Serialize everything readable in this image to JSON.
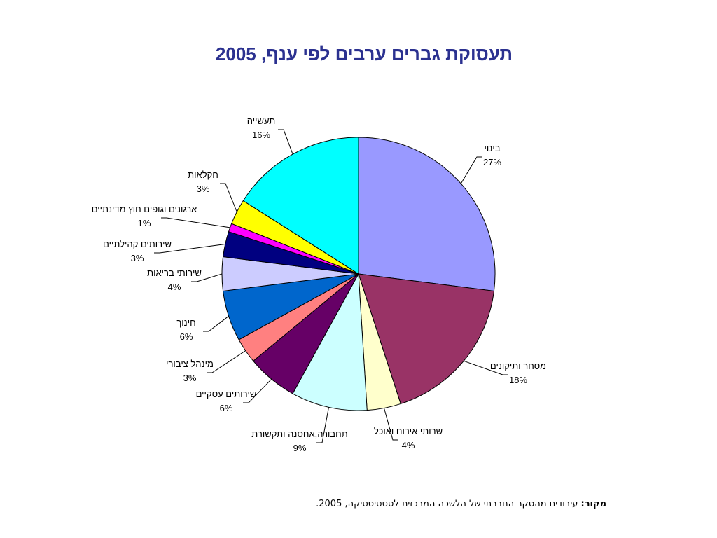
{
  "title": "תעסוקת גברים ערבים לפי ענף, 2005",
  "source": {
    "label": "מקור:",
    "text": " עיבודים מהסקר החברתי של הלשכה המרכזית לסטטיסטיקה, 2005."
  },
  "chart_data": {
    "type": "pie",
    "title": "תעסוקת גברים ערבים לפי ענף, 2005",
    "legend": "none",
    "series": [
      {
        "name": "בינוי",
        "value": 27,
        "label": "27%",
        "color": "#9999ff"
      },
      {
        "name": "מסחר ותיקונים",
        "value": 18,
        "label": "18%",
        "color": "#993366"
      },
      {
        "name": "שרותי אירוח ואוכל",
        "value": 4,
        "label": "4%",
        "color": "#ffffcc"
      },
      {
        "name": "תחבורה,אחסנה ותקשורת",
        "value": 9,
        "label": "9%",
        "color": "#ccffff"
      },
      {
        "name": "שירותים עסקיים",
        "value": 6,
        "label": "6%",
        "color": "#660066"
      },
      {
        "name": "מינהל ציבורי",
        "value": 3,
        "label": "3%",
        "color": "#ff8080"
      },
      {
        "name": "חינוך",
        "value": 6,
        "label": "6%",
        "color": "#0066cc"
      },
      {
        "name": "שירותי בריאות",
        "value": 4,
        "label": "4%",
        "color": "#ccccff"
      },
      {
        "name": "שירותים קהילתיים",
        "value": 3,
        "label": "3%",
        "color": "#000080"
      },
      {
        "name": "ארגונים וגופים חוץ מדינתיים",
        "value": 1,
        "label": "1%",
        "color": "#ff00ff"
      },
      {
        "name": "חקלאות",
        "value": 3,
        "label": "3%",
        "color": "#ffff00"
      },
      {
        "name": "תעשייה",
        "value": 16,
        "label": "16%",
        "color": "#00ffff"
      }
    ]
  }
}
